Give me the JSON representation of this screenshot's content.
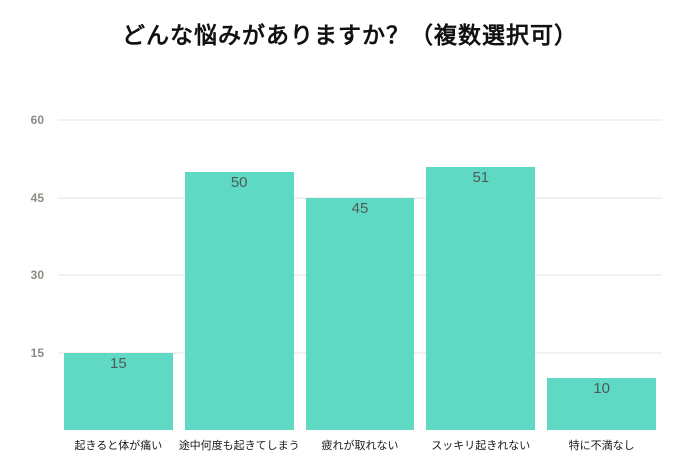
{
  "title": "どんな悩みがありますか？（複数選択可）",
  "chart_data": {
    "type": "bar",
    "title": "どんな悩みがありますか？（複数選択可）",
    "categories": [
      "起きると体が痛い",
      "途中何度も起きてしまう",
      "疲れが取れない",
      "スッキリ起きれない",
      "特に不満なし"
    ],
    "values": [
      15,
      50,
      45,
      51,
      10
    ],
    "xlabel": "",
    "ylabel": "",
    "ylim": [
      0,
      60
    ],
    "yticks": [
      15,
      30,
      45,
      60
    ],
    "grid": "horizontal-only",
    "legend": "none",
    "colors": {
      "bar": "#5FD9C4",
      "value_label": "#4E5B58",
      "tick_label": "#8B8B83",
      "gridline": "#E3E3E3",
      "category_label": "#1A1A1A",
      "background": "#FFFFFF"
    }
  }
}
